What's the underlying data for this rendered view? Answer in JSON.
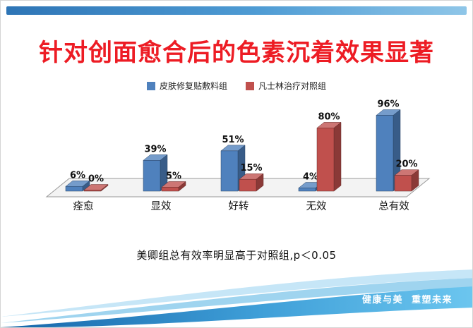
{
  "slide": {
    "title": "针对创面愈合后的色素沉着效果显著",
    "caption": "美卿组总有效率明显高于对照组,p＜0.05",
    "footer_tagline": "健康与美  重塑未来"
  },
  "colors": {
    "title": "#ed1c24",
    "series1": "#4F81BD",
    "series2": "#C0504D",
    "top_bar": "#2e75b6",
    "wave_dark": "#1565a9",
    "wave_light": "#6cc6ef"
  },
  "chart_data": {
    "type": "bar",
    "style": "3d-clustered-column",
    "title": "",
    "categories": [
      "痊愈",
      "显效",
      "好转",
      "无效",
      "总有效"
    ],
    "series": [
      {
        "name": "皮肤修复贴敷料组",
        "color": "#4F81BD",
        "values": [
          6,
          39,
          51,
          4,
          96
        ]
      },
      {
        "name": "凡士林治疗对照组",
        "color": "#C0504D",
        "values": [
          0,
          5,
          15,
          80,
          20
        ]
      }
    ],
    "value_suffix": "%",
    "ylim": [
      0,
      100
    ],
    "grid": false,
    "legend_position": "top",
    "data_labels": true
  }
}
